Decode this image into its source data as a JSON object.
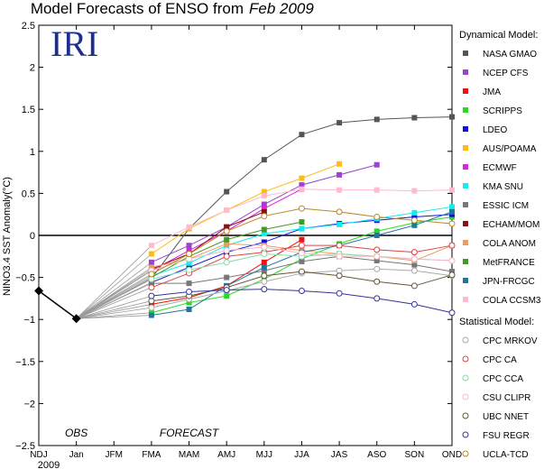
{
  "chart_data": {
    "type": "line",
    "title": "Model Forecasts of ENSO from",
    "title_date": "Feb 2009",
    "logo": "IRI",
    "ylabel": "NINO3.4 SST Anomaly(°C)",
    "xlabel": "",
    "ylim": [
      -2.5,
      2.5
    ],
    "yticks": [
      "−2.5",
      "−2",
      "−1.5",
      "−1",
      "−0.5",
      "0",
      "0.5",
      "1",
      "1.5",
      "2",
      "2.5"
    ],
    "ytick_values": [
      -2.5,
      -2,
      -1.5,
      -1,
      -0.5,
      0,
      0.5,
      1,
      1.5,
      2,
      2.5
    ],
    "categories": [
      "NDJ",
      "Jan",
      "JFM",
      "FMA",
      "MAM",
      "AMJ",
      "MJJ",
      "JJA",
      "JAS",
      "ASO",
      "SON",
      "OND"
    ],
    "year_label": "2009",
    "annotations": [
      "OBS",
      "FORECAST"
    ],
    "grid": false,
    "zero_line": true,
    "legend_position": "right",
    "legend_headers": [
      "Dynamical Model:",
      "Statistical Model:"
    ],
    "observed": {
      "values": [
        -0.66,
        -0.99
      ],
      "color": "#000000"
    },
    "series": [
      {
        "name": "NASA GMAO",
        "group": "dynamical",
        "marker": "square",
        "color": "#555555",
        "values": [
          null,
          null,
          null,
          -0.51,
          0.08,
          0.52,
          0.9,
          1.2,
          1.34,
          1.38,
          1.4,
          1.41
        ]
      },
      {
        "name": "NCEP CFS",
        "group": "dynamical",
        "marker": "square",
        "color": "#9944cc",
        "values": [
          null,
          null,
          null,
          -0.32,
          -0.12,
          0.1,
          0.37,
          0.6,
          0.72,
          0.84,
          null,
          null
        ]
      },
      {
        "name": "JMA",
        "group": "dynamical",
        "marker": "square",
        "color": "#ee1111",
        "values": [
          null,
          null,
          null,
          -0.82,
          -0.74,
          -0.6,
          -0.32,
          -0.05,
          null,
          null,
          null,
          null
        ]
      },
      {
        "name": "SCRIPPS",
        "group": "dynamical",
        "marker": "square",
        "color": "#22dd22",
        "values": [
          null,
          null,
          null,
          -0.92,
          -0.8,
          -0.72,
          -0.52,
          -0.28,
          -0.1,
          0.05,
          0.15,
          0.22
        ]
      },
      {
        "name": "LDEO",
        "group": "dynamical",
        "marker": "square",
        "color": "#1111dd",
        "values": [
          null,
          null,
          null,
          -0.56,
          -0.38,
          -0.2,
          -0.08,
          0.08,
          0.14,
          0.18,
          0.22,
          0.25
        ]
      },
      {
        "name": "AUS/POAMA",
        "group": "dynamical",
        "marker": "square",
        "color": "#ffbb11",
        "values": [
          null,
          null,
          null,
          -0.22,
          0.08,
          0.3,
          0.52,
          0.68,
          0.85,
          null,
          null,
          null
        ]
      },
      {
        "name": "ECMWF",
        "group": "dynamical",
        "marker": "square",
        "color": "#dd22dd",
        "values": [
          null,
          null,
          null,
          -0.42,
          -0.18,
          0.05,
          0.32,
          0.55,
          null,
          null,
          null,
          null
        ]
      },
      {
        "name": "KMA SNU",
        "group": "dynamical",
        "marker": "square",
        "color": "#11eeee",
        "values": [
          null,
          null,
          null,
          -0.48,
          -0.33,
          -0.12,
          0.02,
          0.08,
          0.13,
          0.2,
          0.27,
          0.34
        ]
      },
      {
        "name": "ESSIC ICM",
        "group": "dynamical",
        "marker": "square",
        "color": "#777777",
        "values": [
          null,
          null,
          null,
          -0.57,
          -0.57,
          -0.5,
          -0.42,
          -0.31,
          -0.25,
          -0.3,
          -0.35,
          -0.43
        ]
      },
      {
        "name": "ECHAM/MOM",
        "group": "dynamical",
        "marker": "square",
        "color": "#881111",
        "values": [
          null,
          null,
          null,
          -0.4,
          -0.22,
          0.1,
          0.28,
          null,
          null,
          null,
          null,
          null
        ]
      },
      {
        "name": "COLA ANOM",
        "group": "dynamical",
        "marker": "square",
        "color": "#ee9966",
        "values": [
          null,
          null,
          null,
          -0.38,
          -0.28,
          -0.1,
          -0.12,
          -0.18,
          -0.22,
          -0.25,
          -0.3,
          -0.12
        ]
      },
      {
        "name": "MetFRANCE",
        "group": "dynamical",
        "marker": "square",
        "color": "#449922",
        "values": [
          null,
          null,
          null,
          -0.5,
          -0.25,
          -0.05,
          0.07,
          0.16,
          null,
          null,
          null,
          null
        ]
      },
      {
        "name": "JPN-FRCGC",
        "group": "dynamical",
        "marker": "square",
        "color": "#227799",
        "values": [
          null,
          null,
          null,
          -0.95,
          -0.88,
          -0.6,
          -0.38,
          -0.2,
          -0.12,
          0.0,
          0.12,
          0.28
        ]
      },
      {
        "name": "COLA CCSM3",
        "group": "dynamical",
        "marker": "square",
        "color": "#ffbbcc",
        "values": [
          null,
          null,
          null,
          -0.12,
          0.1,
          0.3,
          0.47,
          0.55,
          0.54,
          0.54,
          0.53,
          0.54
        ]
      },
      {
        "name": "CPC MRKOV",
        "group": "statistical",
        "marker": "circle",
        "color": "#aaaaaa",
        "values": [
          null,
          null,
          null,
          -0.86,
          -0.76,
          -0.66,
          -0.55,
          -0.45,
          -0.42,
          -0.4,
          -0.42,
          -0.48
        ]
      },
      {
        "name": "CPC CA",
        "group": "statistical",
        "marker": "circle",
        "color": "#dd4444",
        "values": [
          null,
          null,
          null,
          -0.62,
          -0.45,
          -0.25,
          -0.2,
          -0.12,
          -0.12,
          -0.17,
          -0.2,
          -0.12
        ]
      },
      {
        "name": "CPC CCA",
        "group": "statistical",
        "marker": "circle",
        "color": "#88ddaa",
        "values": [
          null,
          null,
          null,
          -0.52,
          -0.41,
          -0.32,
          -0.22,
          -0.25,
          -0.22,
          -0.25,
          -0.28,
          -0.3
        ]
      },
      {
        "name": "CSU CLIPR",
        "group": "statistical",
        "marker": "circle",
        "color": "#f2b8c6",
        "values": [
          null,
          null,
          null,
          -0.42,
          -0.28,
          -0.18,
          -0.14,
          -0.21,
          -0.25,
          -0.25,
          -0.28,
          -0.3
        ]
      },
      {
        "name": "UBC NNET",
        "group": "statistical",
        "marker": "circle",
        "color": "#665533",
        "values": [
          null,
          null,
          null,
          -0.78,
          -0.72,
          -0.62,
          -0.48,
          -0.43,
          -0.48,
          -0.55,
          -0.6,
          -0.47
        ]
      },
      {
        "name": "FSU REGR",
        "group": "statistical",
        "marker": "circle",
        "color": "#333399",
        "values": [
          null,
          null,
          null,
          -0.72,
          -0.67,
          -0.65,
          -0.64,
          -0.66,
          -0.69,
          -0.75,
          -0.82,
          -0.92
        ]
      },
      {
        "name": "UCLA-TCD",
        "group": "statistical",
        "marker": "circle",
        "color": "#bb8822",
        "values": [
          null,
          null,
          null,
          -0.46,
          -0.22,
          0.05,
          0.23,
          0.32,
          0.28,
          0.22,
          0.18,
          0.14
        ]
      }
    ]
  }
}
